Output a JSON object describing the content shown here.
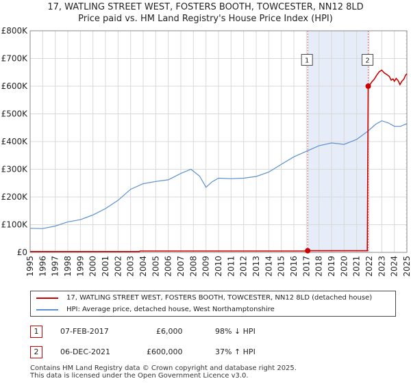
{
  "chart_data": {
    "type": "line",
    "title": "17, WATLING STREET WEST, FOSTERS BOOTH, TOWCESTER, NN12 8LD",
    "subtitle": "Price paid vs. HM Land Registry's House Price Index (HPI)",
    "xlim": [
      1995,
      2025
    ],
    "ylim": [
      0,
      800000
    ],
    "yticks": [
      {
        "value": 0,
        "label": "£0"
      },
      {
        "value": 100000,
        "label": "£100K"
      },
      {
        "value": 200000,
        "label": "£200K"
      },
      {
        "value": 300000,
        "label": "£300K"
      },
      {
        "value": 400000,
        "label": "£400K"
      },
      {
        "value": 500000,
        "label": "£500K"
      },
      {
        "value": 600000,
        "label": "£600K"
      },
      {
        "value": 700000,
        "label": "£700K"
      },
      {
        "value": 800000,
        "label": "£800K"
      }
    ],
    "xticks": [
      {
        "value": 1995,
        "label": "1995"
      },
      {
        "value": 1996,
        "label": "1996"
      },
      {
        "value": 1997,
        "label": "1997"
      },
      {
        "value": 1998,
        "label": "1998"
      },
      {
        "value": 1999,
        "label": "1999"
      },
      {
        "value": 2000,
        "label": "2000"
      },
      {
        "value": 2001,
        "label": "2001"
      },
      {
        "value": 2002,
        "label": "2002"
      },
      {
        "value": 2003,
        "label": "2003"
      },
      {
        "value": 2004,
        "label": "2004"
      },
      {
        "value": 2005,
        "label": "2005"
      },
      {
        "value": 2006,
        "label": "2006"
      },
      {
        "value": 2007,
        "label": "2007"
      },
      {
        "value": 2008,
        "label": "2008"
      },
      {
        "value": 2009,
        "label": "2009"
      },
      {
        "value": 2010,
        "label": "2010"
      },
      {
        "value": 2011,
        "label": "2011"
      },
      {
        "value": 2012,
        "label": "2012"
      },
      {
        "value": 2013,
        "label": "2013"
      },
      {
        "value": 2014,
        "label": "2014"
      },
      {
        "value": 2015,
        "label": "2015"
      },
      {
        "value": 2016,
        "label": "2016"
      },
      {
        "value": 2017,
        "label": "2017"
      },
      {
        "value": 2018,
        "label": "2018"
      },
      {
        "value": 2019,
        "label": "2019"
      },
      {
        "value": 2020,
        "label": "2020"
      },
      {
        "value": 2021,
        "label": "2021"
      },
      {
        "value": 2022,
        "label": "2022"
      },
      {
        "value": 2023,
        "label": "2023"
      },
      {
        "value": 2024,
        "label": "2024"
      },
      {
        "value": 2025,
        "label": "2025"
      }
    ],
    "series": [
      {
        "name": "17, WATLING STREET WEST, FOSTERS BOOTH, TOWCESTER, NN12 8LD (detached house)",
        "color": "#cc0000",
        "points": [
          [
            1995.0,
            3000
          ],
          [
            2003.7,
            3000
          ],
          [
            2003.75,
            5000
          ],
          [
            2017.1,
            5000
          ],
          [
            2017.1,
            6000
          ],
          [
            2021.85,
            6000
          ],
          [
            2021.92,
            600000
          ],
          [
            2022.0,
            602000
          ],
          [
            2022.2,
            615000
          ],
          [
            2022.4,
            625000
          ],
          [
            2022.6,
            640000
          ],
          [
            2022.8,
            652000
          ],
          [
            2023.0,
            658000
          ],
          [
            2023.2,
            648000
          ],
          [
            2023.4,
            642000
          ],
          [
            2023.6,
            635000
          ],
          [
            2023.75,
            622000
          ],
          [
            2023.9,
            626000
          ],
          [
            2024.0,
            618000
          ],
          [
            2024.15,
            628000
          ],
          [
            2024.3,
            620000
          ],
          [
            2024.45,
            606000
          ],
          [
            2024.6,
            618000
          ],
          [
            2024.75,
            625000
          ],
          [
            2024.9,
            640000
          ],
          [
            2025.0,
            645000
          ]
        ]
      },
      {
        "name": "HPI: Average price, detached house, West Northamptonshire",
        "color": "#5b8fd0",
        "points": [
          [
            1995.0,
            87000
          ],
          [
            1996.0,
            86000
          ],
          [
            1997.0,
            95000
          ],
          [
            1998.0,
            110000
          ],
          [
            1999.0,
            118000
          ],
          [
            2000.0,
            135000
          ],
          [
            2001.0,
            158000
          ],
          [
            2002.0,
            188000
          ],
          [
            2003.0,
            228000
          ],
          [
            2004.0,
            248000
          ],
          [
            2005.0,
            256000
          ],
          [
            2006.0,
            262000
          ],
          [
            2007.0,
            285000
          ],
          [
            2007.8,
            300000
          ],
          [
            2008.5,
            275000
          ],
          [
            2009.0,
            235000
          ],
          [
            2009.5,
            255000
          ],
          [
            2010.0,
            268000
          ],
          [
            2011.0,
            266000
          ],
          [
            2012.0,
            268000
          ],
          [
            2013.0,
            274000
          ],
          [
            2014.0,
            290000
          ],
          [
            2015.0,
            318000
          ],
          [
            2016.0,
            345000
          ],
          [
            2017.0,
            365000
          ],
          [
            2018.0,
            385000
          ],
          [
            2019.0,
            395000
          ],
          [
            2020.0,
            390000
          ],
          [
            2021.0,
            408000
          ],
          [
            2021.9,
            438000
          ],
          [
            2022.5,
            462000
          ],
          [
            2023.0,
            475000
          ],
          [
            2023.5,
            468000
          ],
          [
            2024.0,
            455000
          ],
          [
            2024.5,
            455000
          ],
          [
            2025.0,
            465000
          ]
        ]
      }
    ],
    "annotations": [
      {
        "label": "1",
        "x": 2017.1,
        "y": 6000,
        "label_y": 695000
      },
      {
        "label": "2",
        "x": 2021.92,
        "y": 600000,
        "label_y": 695000
      }
    ],
    "legend_position": "below"
  },
  "legend": {
    "property": "17, WATLING STREET WEST, FOSTERS BOOTH, TOWCESTER, NN12 8LD (detached house)",
    "hpi": "HPI: Average price, detached house, West Northamptonshire"
  },
  "transactions": [
    {
      "num": "1",
      "date": "07-FEB-2017",
      "price": "£6,000",
      "hpi": "98% ↓ HPI"
    },
    {
      "num": "2",
      "date": "06-DEC-2021",
      "price": "£600,000",
      "hpi": "37% ↑ HPI"
    }
  ],
  "footer": {
    "line1": "Contains HM Land Registry data © Crown copyright and database right 2025.",
    "line2": "This data is licensed under the Open Government Licence v3.0."
  },
  "colors": {
    "property": "#cc0000",
    "hpi": "#5b8fd0",
    "shade": "#e6ecf8",
    "grid": "#d9d9d9"
  }
}
